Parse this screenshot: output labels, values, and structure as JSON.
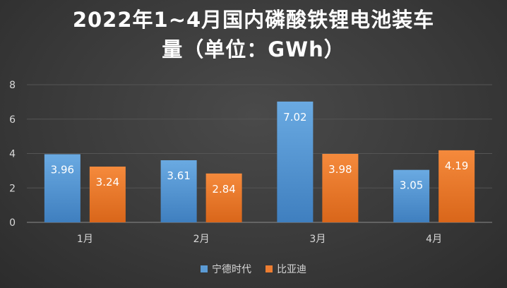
{
  "chart_data": {
    "type": "bar",
    "title_lines": [
      "2022年1~4月国内磷酸铁锂电池装车",
      "量（单位：GWh）"
    ],
    "categories": [
      "1月",
      "2月",
      "3月",
      "4月"
    ],
    "series": [
      {
        "name": "宁德时代",
        "values": [
          3.96,
          3.61,
          7.02,
          3.05
        ],
        "color": "#5b9bd5"
      },
      {
        "name": "比亚迪",
        "values": [
          3.24,
          2.84,
          3.98,
          4.19
        ],
        "color": "#ed7d31"
      }
    ],
    "y_ticks": [
      "0",
      "2",
      "4",
      "6",
      "8"
    ],
    "ylim": [
      0,
      8
    ],
    "grid": true,
    "legend_position": "bottom"
  }
}
